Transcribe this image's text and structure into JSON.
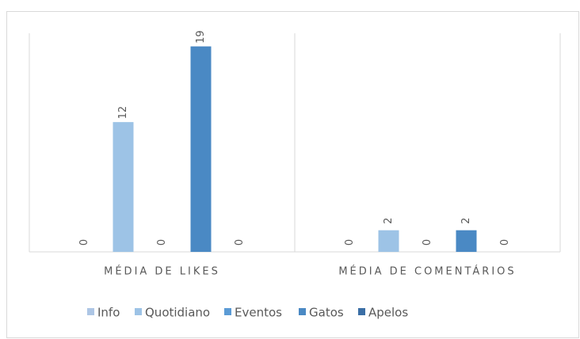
{
  "chart_data": {
    "type": "bar",
    "categories": [
      "MÉDIA DE LIKES",
      "MÉDIA DE COMENTÁRIOS"
    ],
    "series": [
      {
        "name": "Info",
        "color": "#adc6e5",
        "values": [
          0,
          0
        ]
      },
      {
        "name": "Quotidiano",
        "color": "#9dc3e6",
        "values": [
          12,
          2
        ]
      },
      {
        "name": "Eventos",
        "color": "#5b9bd5",
        "values": [
          0,
          0
        ]
      },
      {
        "name": "Gatos",
        "color": "#4a89c4",
        "values": [
          19,
          2
        ]
      },
      {
        "name": "Apelos",
        "color": "#3b6ea5",
        "values": [
          0,
          0
        ]
      }
    ]
  }
}
